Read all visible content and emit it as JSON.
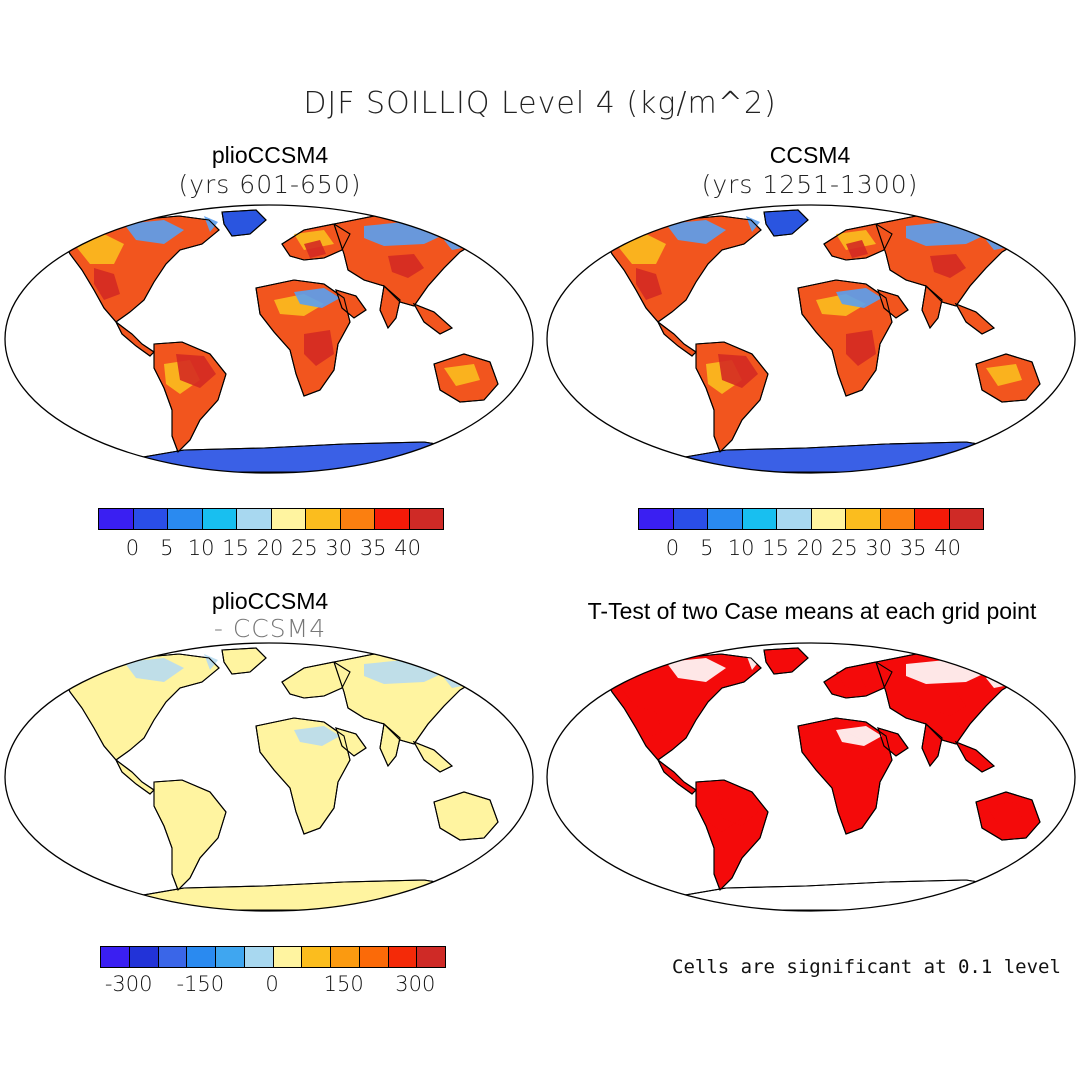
{
  "title": "DJF SOILLIQ Level 4 (kg/m^2)",
  "panels": {
    "top_left": {
      "title": "plioCCSM4",
      "subtitle": "(yrs 601-650)"
    },
    "top_right": {
      "title": "CCSM4",
      "subtitle": "(yrs 1251-1300)"
    },
    "bottom_left": {
      "title": "plioCCSM4",
      "subtitle": "- CCSM4"
    },
    "bottom_right": {
      "title": "T-Test of two Case means at each grid point",
      "note": "Cells are significant at 0.1 level"
    }
  },
  "colorbar_abs": {
    "colors": [
      "#3a1ff2",
      "#2a4ee8",
      "#2a8af0",
      "#18bff0",
      "#a8d8f0",
      "#fff4a0",
      "#fbbd1e",
      "#fb7f10",
      "#f41a08",
      "#cf2a26"
    ],
    "tick_labels": [
      "0",
      "5",
      "10",
      "15",
      "20",
      "25",
      "30",
      "35",
      "40"
    ],
    "tick_values": [
      0,
      5,
      10,
      15,
      20,
      25,
      30,
      35,
      40
    ]
  },
  "colorbar_diff": {
    "colors": [
      "#3a1ff2",
      "#2233d8",
      "#3a66e8",
      "#2a8af0",
      "#3fa6f0",
      "#a8d8f0",
      "#fff4a0",
      "#fbbd1e",
      "#fb9a10",
      "#fb6a08",
      "#f42a08",
      "#cf2a26"
    ],
    "tick_labels": [
      "-300",
      "-150",
      "0",
      "150",
      "300"
    ],
    "tick_values": [
      -300,
      -150,
      0,
      150,
      300
    ]
  },
  "map_fills": {
    "top_left": {
      "land": "#f2551e",
      "patch_a": "#fbbd1e",
      "patch_b": "#5aa0f0",
      "patch_c": "#d42a22",
      "cold": "#2a55e0",
      "ice": "#3a60e6"
    },
    "top_right": {
      "land": "#f2551e",
      "patch_a": "#fbbd1e",
      "patch_b": "#5aa0f0",
      "patch_c": "#d42a22",
      "cold": "#2a55e0",
      "ice": "#3a60e6"
    },
    "bottom_left": {
      "land": "#fff4a0",
      "patch_a": "#fff4a0",
      "patch_b": "#b8dcf0",
      "patch_c": "#fff4a0",
      "cold": "#fff4a0",
      "ice": "#fff4a0"
    },
    "bottom_right": {
      "land": "#f40a0a",
      "patch_a": "#f40a0a",
      "patch_b": "#ffffff",
      "patch_c": "#f40a0a",
      "cold": "#f40a0a",
      "ice": "#ffffff"
    }
  }
}
